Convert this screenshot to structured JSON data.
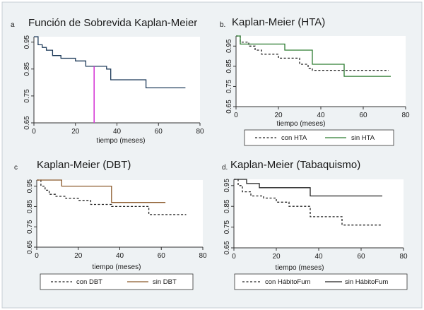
{
  "colors": {
    "background": "#eef2f4",
    "navy": "#1f3b5a",
    "green": "#2e7d32",
    "brown": "#8b5a2b",
    "black": "#222222",
    "magenta": "#d63cd6",
    "frame": "#c7cfd4"
  },
  "chart_data": [
    {
      "type": "line",
      "letter": "a",
      "title": "Función de Sobrevida Kaplan-Meier",
      "xlabel": "tiempo (meses)",
      "xlim": [
        0,
        80
      ],
      "ylim": [
        0.65,
        0.97
      ],
      "xticks": [
        "0",
        "20",
        "40",
        "60",
        "80"
      ],
      "yticks": [
        "0.65",
        "0.75",
        "0.85",
        "0.95"
      ],
      "series": [
        {
          "style": "solid",
          "color": "#1f3b5a",
          "x": [
            0,
            2,
            2,
            4,
            4,
            6,
            6,
            9,
            9,
            13,
            13,
            20,
            20,
            25,
            25,
            35,
            35,
            37,
            37,
            54,
            54,
            73
          ],
          "y": [
            0.97,
            0.97,
            0.94,
            0.94,
            0.93,
            0.93,
            0.92,
            0.92,
            0.9,
            0.9,
            0.89,
            0.89,
            0.88,
            0.88,
            0.86,
            0.86,
            0.85,
            0.85,
            0.81,
            0.81,
            0.78,
            0.78
          ]
        }
      ],
      "marker": {
        "x": 29,
        "y": 0.86,
        "color": "#d63cd6"
      }
    },
    {
      "type": "line",
      "letter": "b.",
      "title": "Kaplan-Meier (HTA)",
      "xlabel": "tiempo (meses)",
      "xlim": [
        0,
        80
      ],
      "ylim": [
        0.65,
        1.0
      ],
      "xticks": [
        "0",
        "20",
        "40",
        "60",
        "80"
      ],
      "yticks": [
        "0.65",
        "0.75",
        "0.85",
        "0.95"
      ],
      "legend": [
        "con HTA",
        "sin HTA"
      ],
      "series": [
        {
          "name": "con HTA",
          "style": "dashed",
          "color": "#222222",
          "x": [
            0,
            2,
            2,
            6,
            6,
            9,
            9,
            12,
            12,
            20,
            20,
            30,
            30,
            34,
            34,
            36,
            36,
            72
          ],
          "y": [
            1.0,
            1.0,
            0.97,
            0.97,
            0.95,
            0.95,
            0.93,
            0.93,
            0.91,
            0.91,
            0.89,
            0.89,
            0.86,
            0.86,
            0.84,
            0.84,
            0.83,
            0.83
          ]
        },
        {
          "name": "sin HTA",
          "style": "solid",
          "color": "#2e7d32",
          "x": [
            0,
            2,
            2,
            23,
            23,
            36,
            36,
            51,
            51,
            73
          ],
          "y": [
            1.0,
            1.0,
            0.96,
            0.96,
            0.93,
            0.93,
            0.86,
            0.86,
            0.8,
            0.8
          ]
        }
      ]
    },
    {
      "type": "line",
      "letter": "c",
      "title": "Kaplan-Meier (DBT)",
      "xlabel": "tiempo (meses)",
      "xlim": [
        0,
        80
      ],
      "ylim": [
        0.65,
        0.98
      ],
      "xticks": [
        "0",
        "20",
        "40",
        "60",
        "80"
      ],
      "yticks": [
        "0.65",
        "0.75",
        "0.85",
        "0.95"
      ],
      "legend": [
        "con DBT",
        "sin DBT"
      ],
      "series": [
        {
          "name": "con DBT",
          "style": "dashed",
          "color": "#222222",
          "x": [
            0,
            2,
            2,
            4,
            4,
            6,
            6,
            9,
            9,
            14,
            14,
            20,
            20,
            26,
            26,
            36,
            36,
            54,
            54,
            72
          ],
          "y": [
            0.98,
            0.98,
            0.95,
            0.95,
            0.93,
            0.93,
            0.91,
            0.91,
            0.9,
            0.9,
            0.89,
            0.89,
            0.88,
            0.88,
            0.86,
            0.86,
            0.85,
            0.85,
            0.81,
            0.81
          ]
        },
        {
          "name": "sin DBT",
          "style": "solid",
          "color": "#8b5a2b",
          "x": [
            0,
            12,
            12,
            36,
            36,
            62
          ],
          "y": [
            0.98,
            0.98,
            0.95,
            0.95,
            0.87,
            0.87
          ]
        }
      ]
    },
    {
      "type": "line",
      "letter": "d.",
      "title": "Kaplan-Meier (Tabaquismo)",
      "xlabel": "tiempo (meses)",
      "xlim": [
        0,
        80
      ],
      "ylim": [
        0.65,
        0.98
      ],
      "xticks": [
        "0",
        "20",
        "40",
        "60",
        "80"
      ],
      "yticks": [
        "0.65",
        "0.75",
        "0.85",
        "0.95"
      ],
      "legend": [
        "con HábitoFum",
        "sin HábitoFum"
      ],
      "series": [
        {
          "name": "con HábitoFum",
          "style": "dashed",
          "color": "#222222",
          "x": [
            0,
            2,
            2,
            4,
            4,
            8,
            8,
            14,
            14,
            20,
            20,
            26,
            26,
            36,
            36,
            51,
            51,
            70
          ],
          "y": [
            0.98,
            0.98,
            0.95,
            0.95,
            0.92,
            0.92,
            0.9,
            0.9,
            0.89,
            0.89,
            0.87,
            0.87,
            0.85,
            0.85,
            0.8,
            0.8,
            0.76,
            0.76
          ]
        },
        {
          "name": "sin HábitoFum",
          "style": "solid",
          "color": "#222222",
          "x": [
            0,
            6,
            6,
            12,
            12,
            36,
            36,
            70
          ],
          "y": [
            0.98,
            0.98,
            0.96,
            0.96,
            0.94,
            0.94,
            0.9,
            0.9
          ]
        }
      ]
    }
  ]
}
